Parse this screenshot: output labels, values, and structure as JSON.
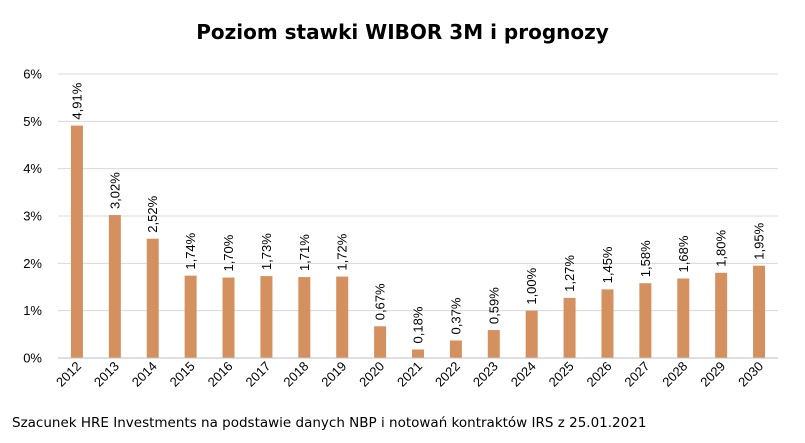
{
  "chart_data": {
    "type": "bar",
    "title": "Poziom stawki WIBOR 3M i prognozy",
    "categories": [
      "2012",
      "2013",
      "2014",
      "2015",
      "2016",
      "2017",
      "2018",
      "2019",
      "2020",
      "2021",
      "2022",
      "2023",
      "2024",
      "2025",
      "2026",
      "2027",
      "2028",
      "2029",
      "2030"
    ],
    "values": [
      4.91,
      3.02,
      2.52,
      1.74,
      1.7,
      1.73,
      1.71,
      1.72,
      0.67,
      0.18,
      0.37,
      0.59,
      1.0,
      1.27,
      1.45,
      1.58,
      1.68,
      1.8,
      1.95
    ],
    "data_labels": [
      "4,91%",
      "3,02%",
      "2,52%",
      "1,74%",
      "1,70%",
      "1,73%",
      "1,71%",
      "1,72%",
      "0,67%",
      "0,18%",
      "0,37%",
      "0,59%",
      "1,00%",
      "1,27%",
      "1,45%",
      "1,58%",
      "1,68%",
      "1,80%",
      "1,95%"
    ],
    "y_ticks": [
      0,
      1,
      2,
      3,
      4,
      5,
      6
    ],
    "y_tick_labels": [
      "0%",
      "1%",
      "2%",
      "3%",
      "4%",
      "5%",
      "6%"
    ],
    "ylim": [
      0,
      6
    ],
    "grid": true,
    "legend": "none",
    "bar_color": "#d4915f",
    "xlabel": "",
    "ylabel": ""
  },
  "source_note": "Szacunek HRE Investments na podstawie danych NBP i notowań kontraktów IRS z 25.01.2021"
}
